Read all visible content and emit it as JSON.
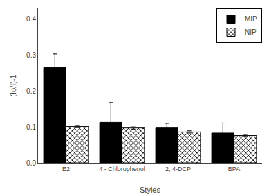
{
  "chart_data": {
    "type": "bar",
    "categories": [
      "E2",
      "4 - Chlorophenol",
      "2, 4-DCP",
      "BPA"
    ],
    "series": [
      {
        "name": "MIP",
        "color": "#000000",
        "values": [
          0.265,
          0.113,
          0.097,
          0.083
        ],
        "errors": [
          0.038,
          0.055,
          0.013,
          0.028
        ]
      },
      {
        "name": "NIP",
        "color": "#ffffff",
        "values": [
          0.101,
          0.097,
          0.086,
          0.076
        ],
        "errors": [
          0.003,
          0.003,
          0.003,
          0.003
        ]
      }
    ],
    "xlabel": "Styles",
    "ylabel": "(Io/I)-1",
    "ylim": [
      0.0,
      0.43
    ],
    "yticks": [
      {
        "value": 0.0,
        "label": "0.0"
      },
      0.1,
      0.2,
      0.3,
      0.4
    ],
    "grid": false,
    "legend": "upper right"
  }
}
